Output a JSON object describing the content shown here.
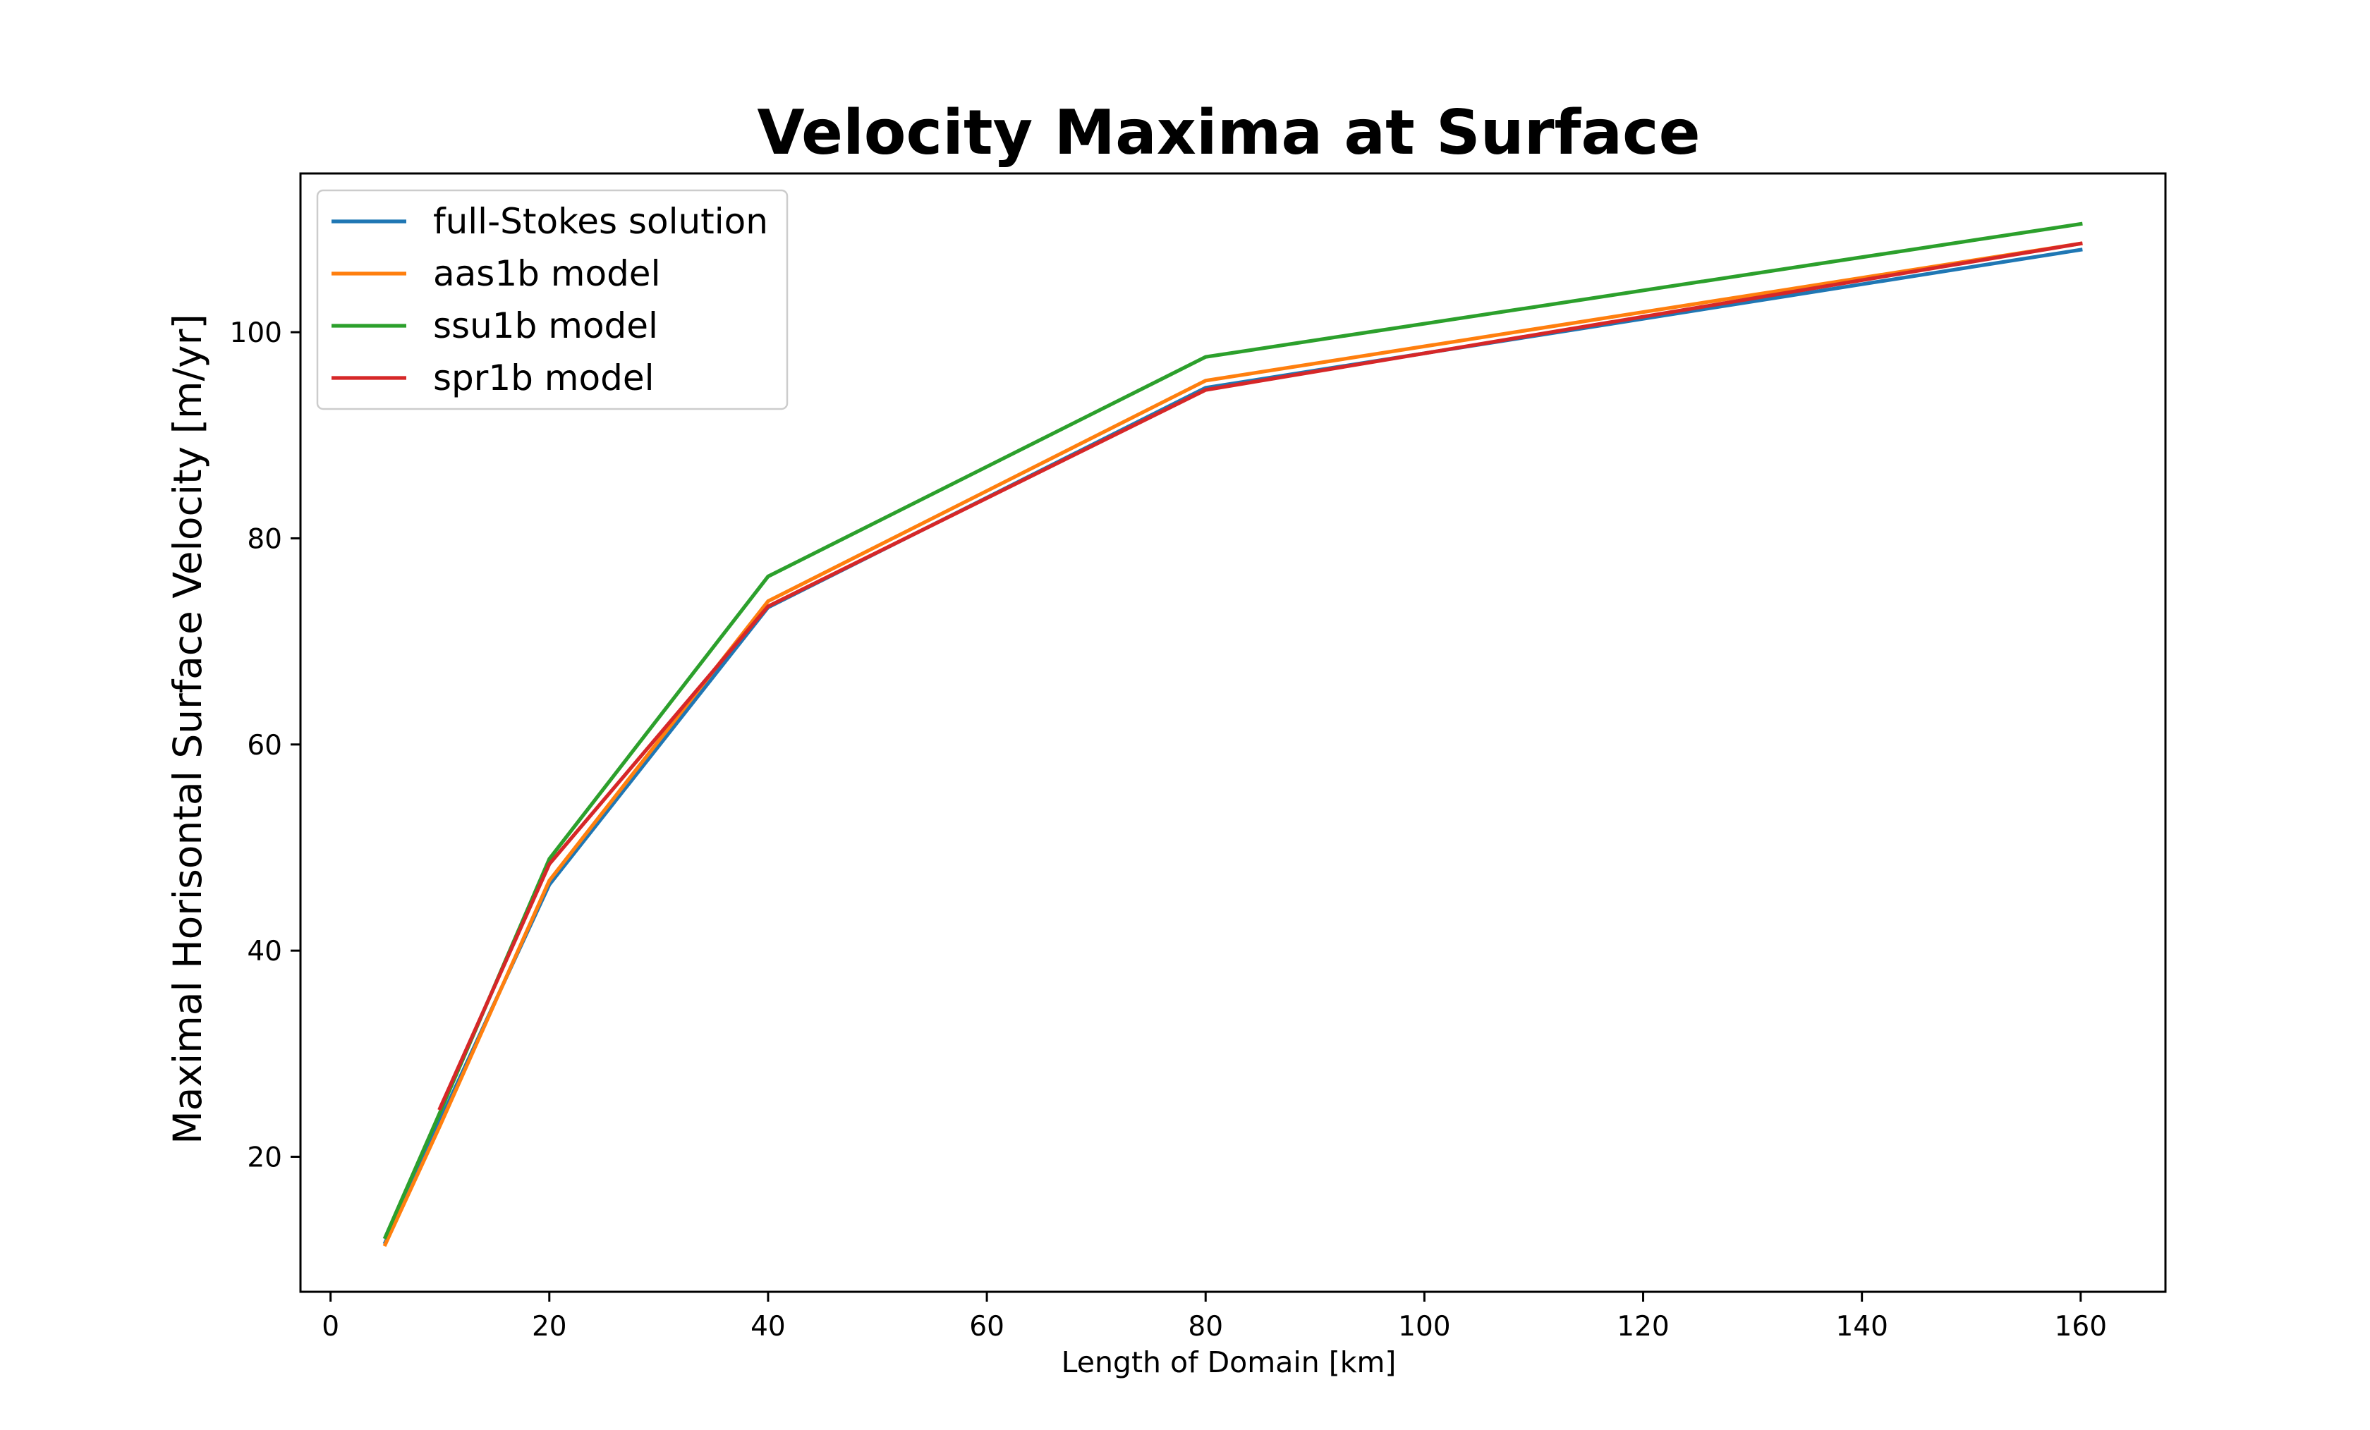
{
  "chart_data": {
    "type": "line",
    "title": "Velocity Maxima at Surface",
    "xlabel": "Length of Domain [km]",
    "ylabel": "Maximal Horisontal Surface Velocity [m/yr]",
    "xlim": [
      -2.75,
      167.75
    ],
    "ylim": [
      6.9,
      115.4
    ],
    "xticks": [
      0,
      20,
      40,
      60,
      80,
      100,
      120,
      140,
      160
    ],
    "yticks": [
      20,
      40,
      60,
      80,
      100
    ],
    "legend_position": "upper-left",
    "series": [
      {
        "name": "full-Stokes solution",
        "color": "#1f77b4",
        "x": [
          5,
          10,
          20,
          40,
          80,
          160
        ],
        "y": [
          11.7,
          23.5,
          46.4,
          73.3,
          94.6,
          108.0
        ]
      },
      {
        "name": "aas1b model",
        "color": "#ff7f0e",
        "x": [
          5,
          10,
          20,
          40,
          80,
          160
        ],
        "y": [
          11.5,
          23.0,
          46.8,
          73.9,
          95.3,
          108.6
        ]
      },
      {
        "name": "ssu1b model",
        "color": "#2ca02c",
        "x": [
          5,
          10,
          20,
          40,
          80,
          160
        ],
        "y": [
          12.2,
          24.3,
          48.9,
          76.3,
          97.6,
          110.5
        ]
      },
      {
        "name": "spr1b model",
        "color": "#d62728",
        "x": [
          10,
          20,
          40,
          80,
          160
        ],
        "y": [
          24.7,
          48.4,
          73.4,
          94.4,
          108.6
        ]
      }
    ]
  }
}
